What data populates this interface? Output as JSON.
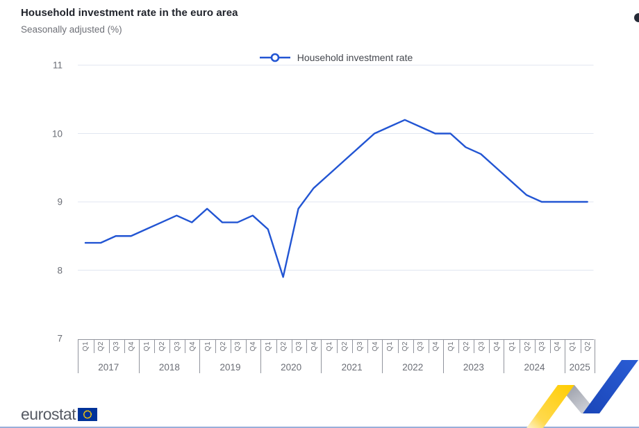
{
  "header": {
    "title": "Household investment rate in the euro area",
    "subtitle": "Seasonally adjusted (%)"
  },
  "chart_data": {
    "type": "line",
    "title": "Household investment rate in the euro area",
    "subtitle": "Seasonally adjusted (%)",
    "legend_position": "top-center",
    "grid": true,
    "ylim": [
      7,
      11
    ],
    "yticks": [
      11,
      10,
      9,
      8,
      7
    ],
    "years": [
      {
        "year": "2017",
        "quarters": [
          "Q1",
          "Q2",
          "Q3",
          "Q4"
        ]
      },
      {
        "year": "2018",
        "quarters": [
          "Q1",
          "Q2",
          "Q3",
          "Q4"
        ]
      },
      {
        "year": "2019",
        "quarters": [
          "Q1",
          "Q2",
          "Q3",
          "Q4"
        ]
      },
      {
        "year": "2020",
        "quarters": [
          "Q1",
          "Q2",
          "Q3",
          "Q4"
        ]
      },
      {
        "year": "2021",
        "quarters": [
          "Q1",
          "Q2",
          "Q3",
          "Q4"
        ]
      },
      {
        "year": "2022",
        "quarters": [
          "Q1",
          "Q2",
          "Q3",
          "Q4"
        ]
      },
      {
        "year": "2023",
        "quarters": [
          "Q1",
          "Q2",
          "Q3",
          "Q4"
        ]
      },
      {
        "year": "2024",
        "quarters": [
          "Q1",
          "Q2",
          "Q3",
          "Q4"
        ]
      },
      {
        "year": "2025",
        "quarters": [
          "Q1",
          "Q2"
        ]
      }
    ],
    "series": [
      {
        "name": "Household investment rate",
        "color": "#2255d3",
        "marker": "circle",
        "values": [
          8.4,
          8.4,
          8.5,
          8.5,
          8.6,
          8.7,
          8.8,
          8.7,
          8.9,
          8.7,
          8.7,
          8.8,
          8.6,
          7.9,
          8.9,
          9.2,
          9.4,
          9.6,
          9.8,
          10.0,
          10.1,
          10.2,
          10.1,
          10.0,
          10.0,
          9.8,
          9.7,
          9.5,
          9.3,
          9.1,
          9.0,
          9.0,
          9.0,
          9.0
        ]
      }
    ]
  },
  "footer": {
    "logo_text": "eurostat"
  }
}
